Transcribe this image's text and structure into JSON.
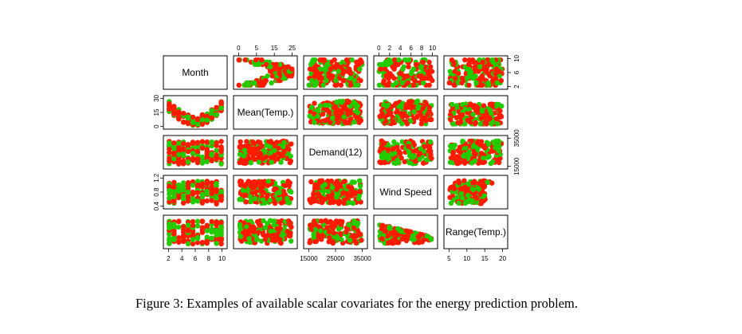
{
  "figure": {
    "variables": [
      "Month",
      "Mean(Temp.)",
      "Demand(12)",
      "Wind Speed",
      "Range(Temp.)"
    ],
    "colors": {
      "primary": "#ff1a00",
      "secondary": "#22cc00"
    },
    "axes": {
      "top": [
        {
          "col": 1,
          "ticks": [
            "0",
            "5",
            "15",
            "25"
          ]
        },
        {
          "col": 3,
          "ticks": [
            "0",
            "2",
            "4",
            "6",
            "8",
            "10"
          ]
        }
      ],
      "right": [
        {
          "row": 0,
          "ticks": [
            "2",
            "6",
            "10"
          ]
        },
        {
          "row": 2,
          "ticks": [
            "15000",
            "35000"
          ]
        }
      ],
      "left": [
        {
          "row": 1,
          "ticks": [
            "0",
            "15",
            "30"
          ]
        },
        {
          "row": 3,
          "ticks": [
            "0.4",
            "0.8",
            "1.2"
          ]
        }
      ],
      "bottom": [
        {
          "col": 0,
          "ticks": [
            "2",
            "4",
            "6",
            "8",
            "10"
          ]
        },
        {
          "col": 2,
          "ticks": [
            "15000",
            "25000",
            "35000"
          ]
        },
        {
          "col": 4,
          "ticks": [
            "5",
            "10",
            "15",
            "20"
          ]
        }
      ]
    }
  },
  "caption": "Figure 3: Examples of available scalar covariates for the energy prediction problem."
}
